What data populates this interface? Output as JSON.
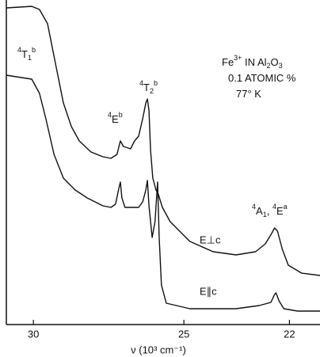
{
  "chart_data": {
    "type": "line",
    "xlabel": "ν (10³ cm⁻¹)",
    "xscale": "log",
    "xlim": [
      31.0,
      21.2
    ],
    "xticks": [
      30,
      25,
      22
    ],
    "ylim": [
      0,
      41
    ],
    "color": "#111111",
    "series": [
      {
        "name": "E⊥c",
        "color": "#111111",
        "x": [
          31.0,
          30.06,
          29.78,
          29.49,
          29.21,
          28.93,
          28.65,
          28.38,
          27.98,
          27.58,
          27.31,
          27.11,
          27.0,
          26.9,
          26.67,
          26.54,
          26.41,
          26.28,
          26.18,
          26.13,
          26.08,
          26.03,
          25.96,
          25.86,
          25.79,
          25.66,
          25.42,
          24.82,
          24.13,
          23.47,
          22.92,
          22.65,
          22.48,
          22.4,
          22.32,
          22.19,
          22.03,
          21.68,
          21.2
        ],
        "values": [
          40.0,
          40.2,
          39.8,
          38.0,
          33.0,
          28.0,
          25.0,
          23.2,
          21.8,
          21.2,
          21.0,
          21.5,
          23.2,
          22.5,
          22.2,
          23.2,
          23.8,
          26.0,
          28.0,
          28.5,
          27.0,
          22.0,
          18.5,
          17.0,
          16.5,
          14.8,
          13.0,
          10.5,
          9.2,
          8.8,
          9.2,
          10.2,
          11.5,
          12.2,
          11.8,
          9.5,
          7.5,
          6.5,
          6.2
        ]
      },
      {
        "name": "E∥c",
        "color": "#111111",
        "x": [
          31.0,
          30.06,
          29.78,
          29.55,
          29.26,
          28.93,
          28.52,
          28.11,
          27.58,
          27.31,
          27.16,
          27.05,
          27.0,
          26.95,
          26.85,
          26.41,
          26.28,
          26.18,
          26.13,
          26.08,
          25.98,
          25.89,
          25.81,
          25.76,
          25.69,
          25.54,
          24.82,
          23.47,
          22.82,
          22.5,
          22.4,
          22.36,
          22.28,
          22.15,
          21.78,
          21.2
        ],
        "values": [
          31.5,
          31.0,
          29.2,
          26.0,
          21.5,
          18.5,
          17.0,
          16.0,
          15.0,
          14.8,
          15.2,
          17.2,
          18.0,
          16.0,
          14.8,
          14.8,
          15.5,
          17.0,
          18.2,
          15.0,
          11.0,
          13.0,
          18.0,
          11.0,
          5.0,
          2.7,
          2.0,
          2.0,
          2.4,
          2.8,
          3.8,
          4.0,
          3.0,
          2.0,
          1.7,
          1.7
        ]
      }
    ],
    "annotations": [
      {
        "parts": [
          {
            "t": "4",
            "pos": "sup"
          },
          {
            "t": "T"
          },
          {
            "t": "1",
            "pos": "sub"
          },
          {
            "t": "b",
            "pos": "sup"
          }
        ]
      },
      {
        "parts": [
          {
            "t": "4",
            "pos": "sup"
          },
          {
            "t": "E"
          },
          {
            "t": "b",
            "pos": "sup"
          }
        ]
      },
      {
        "parts": [
          {
            "t": "4",
            "pos": "sup"
          },
          {
            "t": "T"
          },
          {
            "t": "2",
            "pos": "sub"
          },
          {
            "t": "b",
            "pos": "sup"
          }
        ]
      },
      {
        "parts": [
          {
            "t": "4",
            "pos": "sup"
          },
          {
            "t": "A"
          },
          {
            "t": "1",
            "pos": "sub"
          },
          {
            "t": ", "
          },
          {
            "t": "4",
            "pos": "sup"
          },
          {
            "t": "E"
          },
          {
            "t": "a",
            "pos": "sup"
          }
        ]
      },
      {
        "parts": [
          {
            "t": "Fe"
          },
          {
            "t": "3+",
            "pos": "sup"
          },
          {
            "t": " IN Al"
          },
          {
            "t": "2",
            "pos": "sub"
          },
          {
            "t": "O"
          },
          {
            "t": "3",
            "pos": "sub"
          }
        ]
      },
      {
        "parts": [
          {
            "t": "0.1 ATOMIC %"
          }
        ]
      },
      {
        "parts": [
          {
            "t": "77° K"
          }
        ]
      }
    ]
  }
}
